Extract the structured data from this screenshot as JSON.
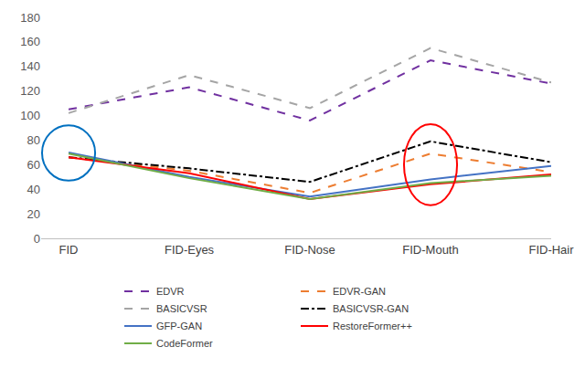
{
  "chart_data": {
    "type": "line",
    "categories": [
      "FID",
      "FID-Eyes",
      "FID-Nose",
      "FID-Mouth",
      "FID-Hair"
    ],
    "series": [
      {
        "name": "EDVR",
        "color": "#7030a0",
        "line_style": "dash",
        "values": [
          105,
          123,
          96,
          145,
          126
        ]
      },
      {
        "name": "EDVR-GAN",
        "color": "#ed7d31",
        "line_style": "dash",
        "values": [
          66,
          55,
          37,
          69,
          54
        ]
      },
      {
        "name": "BASICVSR",
        "color": "#a5a5a5",
        "line_style": "dash",
        "values": [
          102,
          133,
          106,
          155,
          127
        ]
      },
      {
        "name": "BASICVSR-GAN",
        "color": "#000000",
        "line_style": "dashdot",
        "values": [
          66,
          57,
          46,
          79,
          62
        ]
      },
      {
        "name": "GFP-GAN",
        "color": "#4472c4",
        "line_style": "solid",
        "values": [
          70,
          50,
          34,
          48,
          59
        ]
      },
      {
        "name": "RestoreFormer++",
        "color": "#ff0000",
        "line_style": "solid",
        "values": [
          66,
          53,
          32,
          44,
          52
        ]
      },
      {
        "name": "CodeFormer",
        "color": "#70ad47",
        "line_style": "solid",
        "values": [
          69,
          49,
          32,
          45,
          51
        ]
      }
    ],
    "ylim": [
      0,
      180
    ],
    "yticks": [
      0,
      20,
      40,
      60,
      80,
      100,
      120,
      140,
      160,
      180
    ],
    "grid": false,
    "legend": "bottom"
  }
}
